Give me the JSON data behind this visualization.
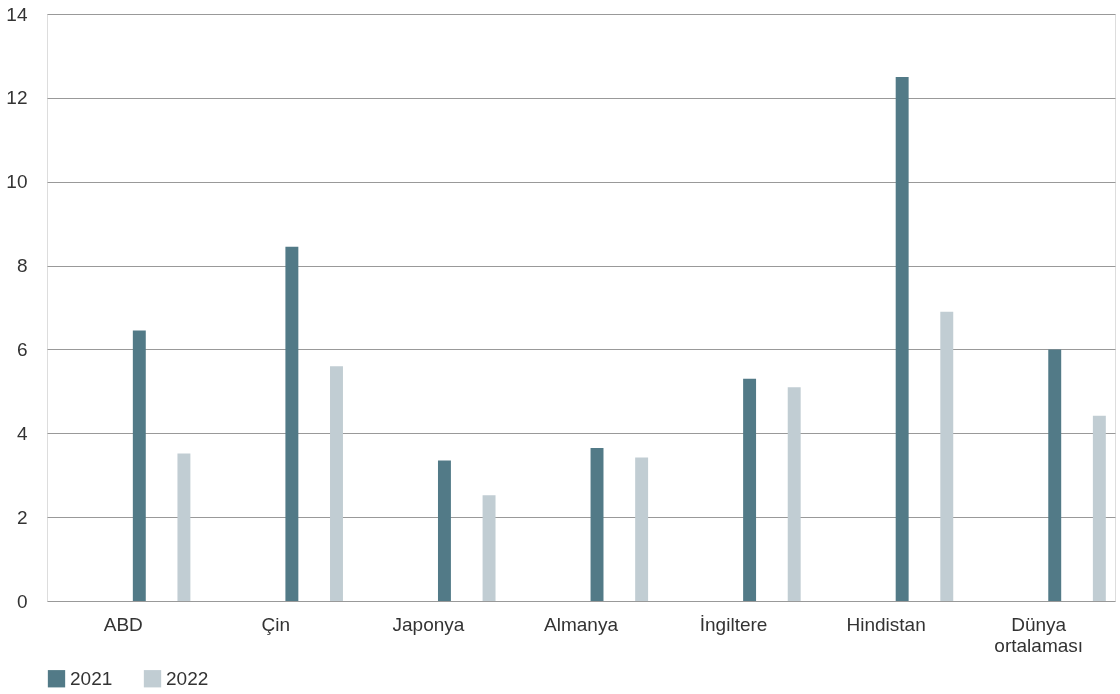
{
  "chart_data": {
    "type": "bar",
    "categories": [
      "ABD",
      "Çin",
      "Japonya",
      "Almanya",
      "İngiltere",
      "Hindistan",
      "Dünya ortalaması"
    ],
    "series": [
      {
        "name": "2021",
        "color": "#527a87",
        "values": [
          6.45,
          8.45,
          3.35,
          3.65,
          5.3,
          12.5,
          6.0
        ]
      },
      {
        "name": "2022",
        "color": "#c1cdd3",
        "values": [
          3.52,
          5.6,
          2.52,
          3.42,
          5.1,
          6.9,
          4.42
        ]
      }
    ],
    "ylim": [
      0,
      14
    ],
    "yticks": [
      0,
      2,
      4,
      6,
      8,
      10,
      12,
      14
    ],
    "grid": "y",
    "legend": "bottom left"
  }
}
